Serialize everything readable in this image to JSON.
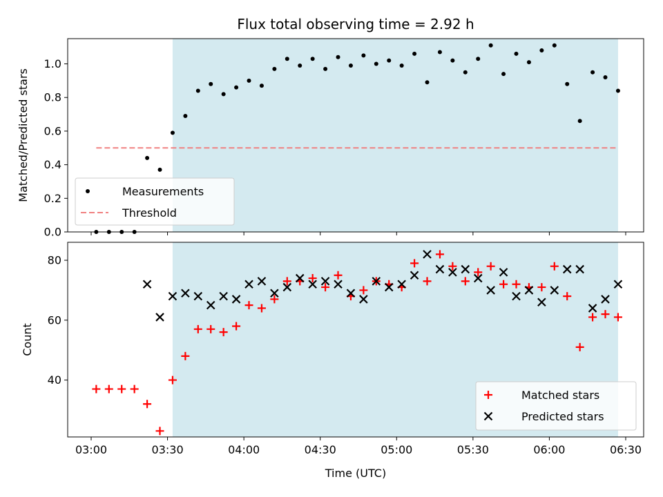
{
  "chart_data": [
    {
      "type": "scatter",
      "title": "Flux total observing time = 2.92 h",
      "ylabel": "Matched/Predicted stars",
      "xlabel": "",
      "xlim": [
        "03:00",
        "06:30"
      ],
      "ylim": [
        0,
        1.15
      ],
      "yticks": [
        0.0,
        0.2,
        0.4,
        0.6,
        0.8,
        1.0
      ],
      "ytick_labels": [
        "0.0",
        "0.2",
        "0.4",
        "0.6",
        "0.8",
        "1.0"
      ],
      "shaded_span": [
        "03:32",
        "06:27"
      ],
      "shaded_color": "#d4eaf0",
      "threshold": {
        "name": "Threshold",
        "y": 0.5,
        "x_range": [
          "03:02",
          "06:27"
        ],
        "color": "#f08080"
      },
      "legend": {
        "placement": "lower-left",
        "entries": [
          "Measurements",
          "Threshold"
        ]
      },
      "series": [
        {
          "name": "Measurements",
          "color": "#000000",
          "marker": "dot",
          "x": [
            "03:02",
            "03:07",
            "03:12",
            "03:17",
            "03:22",
            "03:27",
            "03:32",
            "03:37",
            "03:42",
            "03:47",
            "03:52",
            "03:57",
            "04:02",
            "04:07",
            "04:12",
            "04:17",
            "04:22",
            "04:27",
            "04:32",
            "04:37",
            "04:42",
            "04:47",
            "04:52",
            "04:57",
            "05:02",
            "05:07",
            "05:12",
            "05:17",
            "05:22",
            "05:27",
            "05:32",
            "05:37",
            "05:42",
            "05:47",
            "05:52",
            "05:57",
            "06:02",
            "06:07",
            "06:12",
            "06:17",
            "06:22",
            "06:27"
          ],
          "values": [
            0.0,
            0.0,
            0.0,
            0.0,
            0.44,
            0.37,
            0.59,
            0.69,
            0.84,
            0.88,
            0.82,
            0.86,
            0.9,
            0.87,
            0.97,
            1.03,
            0.99,
            1.03,
            0.97,
            1.04,
            0.99,
            1.05,
            1.0,
            1.02,
            0.99,
            1.06,
            0.89,
            1.07,
            1.02,
            0.95,
            1.03,
            1.11,
            0.94,
            1.06,
            1.01,
            1.08,
            1.11,
            0.88,
            0.66,
            0.95,
            0.92,
            0.84
          ]
        }
      ]
    },
    {
      "type": "scatter",
      "title": "",
      "xlabel": "Time (UTC)",
      "ylabel": "Count",
      "xlim": [
        "03:00",
        "06:30"
      ],
      "ylim": [
        21,
        86
      ],
      "yticks": [
        40,
        60,
        80
      ],
      "ytick_labels": [
        "40",
        "60",
        "80"
      ],
      "xtick_labels": [
        "03:00",
        "03:30",
        "04:00",
        "04:30",
        "05:00",
        "05:30",
        "06:00",
        "06:30"
      ],
      "shaded_span": [
        "03:32",
        "06:27"
      ],
      "shaded_color": "#d4eaf0",
      "legend": {
        "placement": "lower-right",
        "entries": [
          "Matched stars",
          "Predicted stars"
        ]
      },
      "series": [
        {
          "name": "Matched stars",
          "color": "#ff0000",
          "marker": "plus",
          "x": [
            "03:02",
            "03:07",
            "03:12",
            "03:17",
            "03:22",
            "03:27",
            "03:32",
            "03:37",
            "03:42",
            "03:47",
            "03:52",
            "03:57",
            "04:02",
            "04:07",
            "04:12",
            "04:17",
            "04:22",
            "04:27",
            "04:32",
            "04:37",
            "04:42",
            "04:47",
            "04:52",
            "04:57",
            "05:02",
            "05:07",
            "05:12",
            "05:17",
            "05:22",
            "05:27",
            "05:32",
            "05:37",
            "05:42",
            "05:47",
            "05:52",
            "05:57",
            "06:02",
            "06:07",
            "06:12",
            "06:17",
            "06:22",
            "06:27"
          ],
          "values": [
            37,
            37,
            37,
            37,
            32,
            23,
            40,
            48,
            57,
            57,
            56,
            58,
            65,
            64,
            67,
            73,
            73,
            74,
            71,
            75,
            68,
            70,
            73,
            72,
            71,
            79,
            73,
            82,
            78,
            73,
            76,
            78,
            72,
            72,
            71,
            71,
            78,
            68,
            51,
            61,
            62,
            61
          ]
        },
        {
          "name": "Predicted stars",
          "color": "#000000",
          "marker": "x",
          "x": [
            "03:22",
            "03:27",
            "03:32",
            "03:37",
            "03:42",
            "03:47",
            "03:52",
            "03:57",
            "04:02",
            "04:07",
            "04:12",
            "04:17",
            "04:22",
            "04:27",
            "04:32",
            "04:37",
            "04:42",
            "04:47",
            "04:52",
            "04:57",
            "05:02",
            "05:07",
            "05:12",
            "05:17",
            "05:22",
            "05:27",
            "05:32",
            "05:37",
            "05:42",
            "05:47",
            "05:52",
            "05:57",
            "06:02",
            "06:07",
            "06:12",
            "06:17",
            "06:22",
            "06:27"
          ],
          "values": [
            72,
            61,
            68,
            69,
            68,
            65,
            68,
            67,
            72,
            73,
            69,
            71,
            74,
            72,
            73,
            72,
            69,
            67,
            73,
            71,
            72,
            75,
            82,
            77,
            76,
            77,
            74,
            70,
            76,
            68,
            70,
            66,
            70,
            77,
            77,
            64,
            67,
            72
          ]
        }
      ]
    }
  ]
}
